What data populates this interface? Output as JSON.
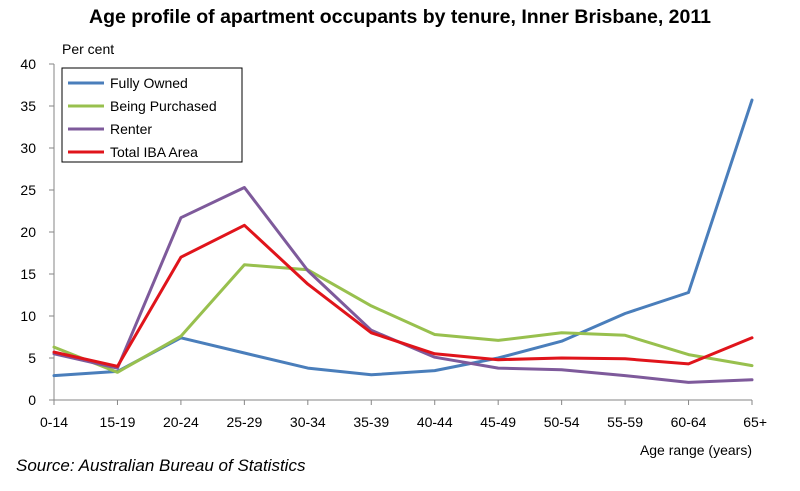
{
  "chart_data": {
    "type": "line",
    "title": "Age profile of apartment occupants by tenure, Inner Brisbane, 2011",
    "ylabel": "Per cent",
    "xlabel": "Age range  (years)",
    "categories": [
      "0-14",
      "15-19",
      "20-24",
      "25-29",
      "30-34",
      "35-39",
      "40-44",
      "45-49",
      "50-54",
      "55-59",
      "60-64",
      "65+"
    ],
    "ylim": [
      0,
      40
    ],
    "yticks": [
      0,
      5,
      10,
      15,
      20,
      25,
      30,
      35,
      40
    ],
    "grid": false,
    "legend": "top-left",
    "series": [
      {
        "name": "Fully Owned",
        "color": "#4a7ebb",
        "values": [
          2.9,
          3.4,
          7.4,
          5.6,
          3.8,
          3.0,
          3.5,
          5.0,
          7.0,
          10.3,
          12.8,
          35.7
        ]
      },
      {
        "name": "Being Purchased",
        "color": "#98c04e",
        "values": [
          6.3,
          3.3,
          7.6,
          16.1,
          15.5,
          11.2,
          7.8,
          7.1,
          8.0,
          7.7,
          5.4,
          4.1
        ]
      },
      {
        "name": "Renter",
        "color": "#7e5a9b",
        "values": [
          5.5,
          3.8,
          21.7,
          25.3,
          15.4,
          8.3,
          5.1,
          3.8,
          3.6,
          2.9,
          2.1,
          2.4
        ]
      },
      {
        "name": "Total IBA Area",
        "color": "#e0141b",
        "values": [
          5.7,
          4.0,
          17.0,
          20.8,
          13.8,
          8.0,
          5.5,
          4.8,
          5.0,
          4.9,
          4.3,
          7.4
        ]
      }
    ]
  },
  "footer": {
    "source": "Source: Australian Bureau of Statistics"
  }
}
